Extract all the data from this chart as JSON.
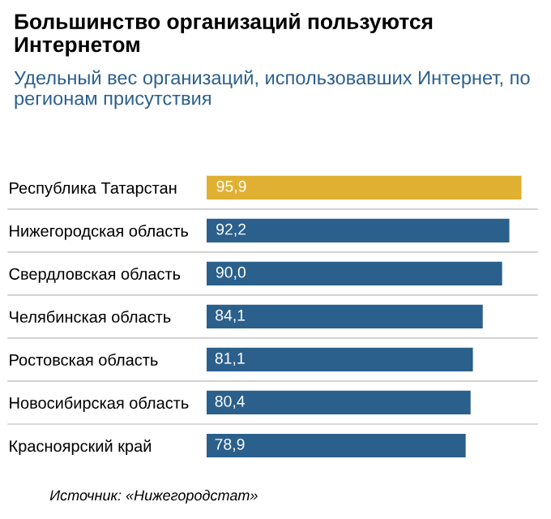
{
  "chart_data": {
    "type": "bar",
    "orientation": "horizontal",
    "title": "Большинство организаций пользуются Интернетом",
    "subtitle": "Удельный вес организаций, использовавших Интернет, по регионам присутствия",
    "categories": [
      "Республика Татарстан",
      "Нижегородская область",
      "Свердловская область",
      "Челябинская область",
      "Ростовская область",
      "Новосибирская область",
      "Красноярский край"
    ],
    "values": [
      95.9,
      92.2,
      90.0,
      84.1,
      81.1,
      80.4,
      78.9
    ],
    "value_labels": [
      "95,9",
      "92,2",
      "90,0",
      "84,1",
      "81,1",
      "80,4",
      "78,9"
    ],
    "colors": [
      "#e0b032",
      "#2b5f8c",
      "#2b5f8c",
      "#2b5f8c",
      "#2b5f8c",
      "#2b5f8c",
      "#2b5f8c"
    ],
    "tick_labels": "y",
    "grid": false,
    "legend": false,
    "annotations": [
      "Источник: «Нижегородстат»"
    ]
  }
}
